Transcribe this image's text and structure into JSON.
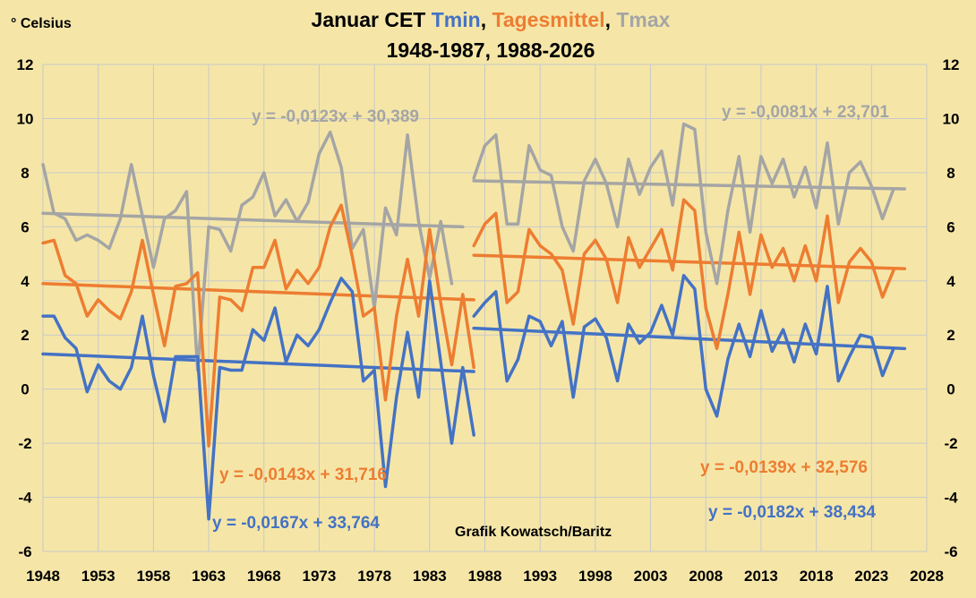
{
  "chart_data": {
    "type": "line",
    "title_parts": [
      {
        "text": "Januar CET ",
        "color": "#000000"
      },
      {
        "text": "Tmin",
        "color": "#4472c4"
      },
      {
        "text": ", ",
        "color": "#000000"
      },
      {
        "text": "Tagesmittel",
        "color": "#ed7d31"
      },
      {
        "text": ", ",
        "color": "#000000"
      },
      {
        "text": "Tmax",
        "color": "#a5a5a5"
      }
    ],
    "subtitle": "1948-1987, 1988-2026",
    "ylabel": "° Celsius",
    "credit": "Grafik Kowatsch/Baritz",
    "ylim": [
      -6,
      12
    ],
    "yticks": [
      -6,
      -4,
      -2,
      0,
      2,
      4,
      6,
      8,
      10,
      12
    ],
    "xlim": [
      1948,
      2028
    ],
    "xticks": [
      1948,
      1953,
      1958,
      1963,
      1968,
      1973,
      1978,
      1983,
      1988,
      1993,
      1998,
      2003,
      2008,
      2013,
      2018,
      2023,
      2028
    ],
    "grid": true,
    "background": "#f5e6a8",
    "series": [
      {
        "name": "Tmax",
        "color": "#a5a5a5",
        "segments": [
          {
            "x_start": 1948,
            "values": [
              8.3,
              6.5,
              6.3,
              5.5,
              5.7,
              5.5,
              5.2,
              6.3,
              8.3,
              6.4,
              4.5,
              6.3,
              6.6,
              7.3,
              0.7,
              6.0,
              5.9,
              5.1,
              6.8,
              7.1,
              8.0,
              6.4,
              7.0,
              6.2,
              6.9,
              8.7,
              9.5,
              8.2,
              5.2,
              5.9,
              3.0,
              6.7,
              5.7,
              9.4,
              6.2,
              4.1,
              6.2,
              3.9
            ]
          },
          {
            "x_start": 1987,
            "values": [
              7.8,
              9.0,
              9.4,
              6.1,
              6.1,
              9.0,
              8.1,
              7.9,
              6.0,
              5.1,
              7.7,
              8.5,
              7.6,
              6.0,
              8.5,
              7.2,
              8.2,
              8.8,
              6.8,
              9.8,
              9.6,
              5.8,
              3.9,
              6.6,
              8.6,
              5.8,
              8.6,
              7.6,
              8.5,
              7.1,
              8.2,
              6.7,
              9.1,
              6.1,
              8.0,
              8.4,
              7.5,
              6.3,
              7.4
            ]
          }
        ]
      },
      {
        "name": "Tagesmittel",
        "color": "#ed7d31",
        "segments": [
          {
            "x_start": 1948,
            "values": [
              5.4,
              5.5,
              4.2,
              3.9,
              2.7,
              3.3,
              2.9,
              2.6,
              3.6,
              5.5,
              3.5,
              1.6,
              3.8,
              3.9,
              4.3,
              -2.1,
              3.4,
              3.3,
              2.9,
              4.5,
              4.5,
              5.5,
              3.7,
              4.4,
              3.9,
              4.5,
              6.0,
              6.8,
              4.9,
              2.7,
              3.0,
              -0.4,
              2.7,
              4.8,
              2.7,
              5.9,
              3.2,
              0.9,
              3.5,
              0.8
            ]
          },
          {
            "x_start": 1987,
            "values": [
              5.3,
              6.1,
              6.5,
              3.2,
              3.6,
              5.9,
              5.3,
              5.0,
              4.4,
              2.4,
              5.0,
              5.5,
              4.8,
              3.2,
              5.6,
              4.5,
              5.2,
              5.9,
              4.4,
              7.0,
              6.6,
              3.0,
              1.5,
              3.5,
              5.8,
              3.5,
              5.7,
              4.5,
              5.2,
              4.0,
              5.3,
              4.0,
              6.4,
              3.2,
              4.7,
              5.2,
              4.7,
              3.4,
              4.4
            ]
          }
        ]
      },
      {
        "name": "Tmin",
        "color": "#4472c4",
        "segments": [
          {
            "x_start": 1948,
            "values": [
              2.7,
              2.7,
              1.9,
              1.5,
              -0.1,
              0.9,
              0.3,
              0.0,
              0.8,
              2.7,
              0.5,
              -1.2,
              1.2,
              1.2,
              1.2,
              -4.8,
              0.8,
              0.7,
              0.7,
              2.2,
              1.8,
              3.0,
              1.0,
              2.0,
              1.6,
              2.2,
              3.2,
              4.1,
              3.6,
              0.3,
              0.7,
              -3.6,
              -0.3,
              2.1,
              -0.3,
              4.0,
              1.0,
              -2.0,
              0.8,
              -1.7
            ]
          },
          {
            "x_start": 1987,
            "values": [
              2.7,
              3.2,
              3.6,
              0.3,
              1.1,
              2.7,
              2.5,
              1.6,
              2.5,
              -0.3,
              2.3,
              2.6,
              1.9,
              0.3,
              2.4,
              1.7,
              2.1,
              3.1,
              2.0,
              4.2,
              3.7,
              0.0,
              -1.0,
              1.1,
              2.4,
              1.2,
              2.9,
              1.4,
              2.2,
              1.0,
              2.4,
              1.3,
              3.8,
              0.3,
              1.2,
              2.0,
              1.9,
              0.5,
              1.5
            ]
          }
        ]
      }
    ],
    "trendlines": [
      {
        "series": "Tmax",
        "color": "#a5a5a5",
        "x": [
          1948,
          1986
        ],
        "y": [
          6.5,
          6.0
        ],
        "equation": "y = -0,0123x + 30,389"
      },
      {
        "series": "Tagesmittel",
        "color": "#ed7d31",
        "x": [
          1948,
          1987
        ],
        "y": [
          3.9,
          3.3
        ],
        "equation": "y = -0,0143x + 31,716"
      },
      {
        "series": "Tmin",
        "color": "#4472c4",
        "x": [
          1948,
          1987
        ],
        "y": [
          1.3,
          0.65
        ],
        "equation": "y = -0,0167x + 33,764"
      },
      {
        "series": "Tmax",
        "color": "#a5a5a5",
        "x": [
          1987,
          2026
        ],
        "y": [
          7.7,
          7.4
        ],
        "equation": "y = -0,0081x + 23,701"
      },
      {
        "series": "Tagesmittel",
        "color": "#ed7d31",
        "x": [
          1987,
          2026
        ],
        "y": [
          4.95,
          4.45
        ],
        "equation": "y = -0,0139x + 32,576"
      },
      {
        "series": "Tmin",
        "color": "#4472c4",
        "x": [
          1987,
          2026
        ],
        "y": [
          2.25,
          1.5
        ],
        "equation": "y = -0,0182x + 38,434"
      }
    ]
  }
}
